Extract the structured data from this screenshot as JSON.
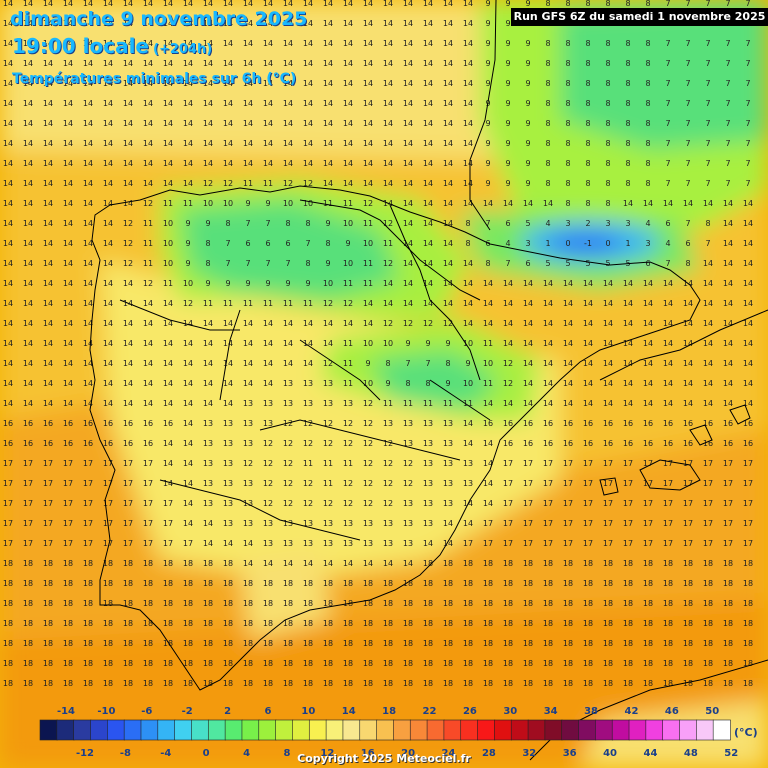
{
  "header": {
    "date": "dimanche 9 novembre 2025",
    "time": "19:00 locale",
    "offset": "(+204h)",
    "description": "Températures minimales sur 6h (°C)",
    "run": "Run GFS 6Z du samedi 1 novembre 2025"
  },
  "legend": {
    "unit": "(°C)",
    "top_labels": [
      "-14",
      "-10",
      "-6",
      "-2",
      "2",
      "6",
      "10",
      "14",
      "18",
      "22",
      "26",
      "30",
      "34",
      "38",
      "42",
      "46",
      "50"
    ],
    "bottom_labels": [
      "-12",
      "-8",
      "-4",
      "0",
      "4",
      "8",
      "12",
      "16",
      "20",
      "24",
      "28",
      "32",
      "36",
      "40",
      "44",
      "48",
      "52"
    ],
    "colors": [
      "#0b1550",
      "#1c2b7a",
      "#2a3ba0",
      "#2b45cc",
      "#2a55f0",
      "#2a6ef5",
      "#2d90f5",
      "#34b4f5",
      "#40d0f0",
      "#48e0c8",
      "#50e8a0",
      "#58ec70",
      "#78f04a",
      "#9cf03c",
      "#c0f03c",
      "#e0f040",
      "#f8f050",
      "#f8f078",
      "#f8e890",
      "#f8d870",
      "#f8c050",
      "#f8a040",
      "#f88838",
      "#f86a30",
      "#f84a28",
      "#f83020",
      "#f81818",
      "#e01010",
      "#c00c18",
      "#a00c20",
      "#800c28",
      "#700c40",
      "#800c60",
      "#a00c80",
      "#c00ca0",
      "#e020c0",
      "#f040e0",
      "#f870f0",
      "#f8a0f8",
      "#f8c8f8",
      "#ffffff"
    ]
  },
  "copyright": "Copyright 2025 Meteociel.fr"
}
